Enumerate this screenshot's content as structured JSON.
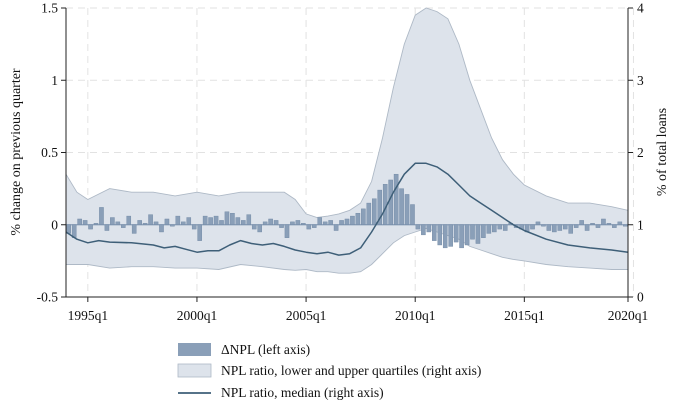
{
  "chart_data": {
    "type": "bar",
    "title": "",
    "ylabel_left": "% change on previous quarter",
    "ylabel_right": "% of total loans",
    "ylim_left": [
      -0.5,
      1.5
    ],
    "ylim_right": [
      0,
      4
    ],
    "yticks_left": [
      -0.5,
      0,
      0.5,
      1,
      1.5
    ],
    "yticks_left_labels": [
      "-0.5",
      "0",
      "0.5",
      "1",
      "1.5"
    ],
    "yticks_right": [
      0,
      1,
      2,
      3,
      4
    ],
    "yticks_right_labels": [
      "0",
      "1",
      "2",
      "3",
      "4"
    ],
    "x_start_year": 1994,
    "x_end_year": 2019.75,
    "xticks": [
      1995,
      2000,
      2005,
      2010,
      2015,
      2020
    ],
    "xtick_labels": [
      "1995q1",
      "2000q1",
      "2005q1",
      "2010q1",
      "2015q1",
      "2020q1"
    ],
    "grid": true,
    "legend_position": "bottom",
    "colors": {
      "bars": "#8a9fb8",
      "band": "#dde3eb",
      "band_edge": "#aeb9c6",
      "median": "#3e5f78",
      "grid": "#e2e2e2"
    },
    "series": [
      {
        "name": "ΔNPL (left axis)",
        "type": "bar",
        "axis": "left",
        "values": [
          -0.06,
          -0.09,
          0.04,
          0.03,
          -0.03,
          0.01,
          0.12,
          -0.04,
          0.05,
          0.02,
          -0.02,
          0.06,
          -0.06,
          0.03,
          0.01,
          0.07,
          0.02,
          -0.05,
          0.04,
          -0.01,
          0.06,
          0.02,
          0.05,
          -0.03,
          -0.11,
          0.06,
          0.05,
          0.06,
          0.03,
          0.09,
          0.08,
          0.05,
          0.03,
          0.07,
          -0.03,
          -0.05,
          0.02,
          0.04,
          0.03,
          -0.02,
          -0.09,
          0.02,
          0.03,
          0.01,
          -0.03,
          -0.02,
          0.05,
          0.02,
          0.03,
          -0.04,
          0.03,
          0.04,
          0.06,
          0.08,
          0.11,
          0.15,
          0.18,
          0.24,
          0.28,
          0.31,
          0.35,
          0.25,
          0.21,
          0.14,
          -0.03,
          -0.07,
          -0.05,
          -0.11,
          -0.14,
          -0.16,
          -0.15,
          -0.12,
          -0.16,
          -0.14,
          -0.1,
          -0.13,
          -0.09,
          -0.06,
          -0.05,
          -0.03,
          -0.04,
          0.01,
          -0.02,
          -0.03,
          -0.05,
          -0.03,
          0.02,
          -0.01,
          -0.04,
          -0.05,
          -0.04,
          -0.03,
          -0.06,
          -0.02,
          0.03,
          -0.04,
          0.01,
          -0.02,
          0.04,
          0.01,
          -0.02,
          0.02,
          -0.01
        ]
      },
      {
        "name": "NPL ratio, lower and upper quartiles (right axis)",
        "type": "area",
        "axis": "right",
        "x": [
          1994,
          1994.5,
          1995,
          1996,
          1997,
          1998,
          1999,
          2000,
          2001,
          2002,
          2003,
          2004,
          2004.5,
          2005,
          2005.5,
          2006,
          2006.5,
          2007,
          2007.5,
          2008,
          2008.5,
          2009,
          2009.5,
          2010,
          2010.5,
          2011,
          2011.5,
          2012,
          2012.5,
          2013,
          2013.5,
          2014,
          2014.5,
          2015,
          2016,
          2017,
          2018,
          2019,
          2019.75
        ],
        "upper": [
          1.7,
          1.45,
          1.35,
          1.5,
          1.45,
          1.45,
          1.4,
          1.45,
          1.4,
          1.45,
          1.45,
          1.45,
          1.35,
          1.15,
          1.1,
          1.12,
          1.15,
          1.2,
          1.3,
          1.6,
          2.2,
          2.9,
          3.5,
          3.9,
          4.0,
          3.95,
          3.85,
          3.5,
          3.0,
          2.6,
          2.2,
          1.9,
          1.7,
          1.55,
          1.4,
          1.3,
          1.3,
          1.25,
          1.2
        ],
        "lower": [
          0.45,
          0.45,
          0.45,
          0.4,
          0.42,
          0.42,
          0.4,
          0.4,
          0.38,
          0.45,
          0.42,
          0.38,
          0.37,
          0.38,
          0.35,
          0.35,
          0.33,
          0.33,
          0.35,
          0.45,
          0.6,
          0.75,
          0.85,
          0.9,
          0.95,
          0.9,
          0.85,
          0.8,
          0.7,
          0.65,
          0.6,
          0.55,
          0.52,
          0.5,
          0.45,
          0.42,
          0.4,
          0.38,
          0.38
        ]
      },
      {
        "name": "NPL ratio, median (right axis)",
        "type": "line",
        "axis": "right",
        "x": [
          1994,
          1994.5,
          1995,
          1995.5,
          1996,
          1997,
          1998,
          1998.5,
          1999,
          1999.5,
          2000,
          2000.5,
          2001,
          2001.5,
          2002,
          2002.5,
          2003,
          2003.5,
          2004,
          2004.5,
          2005,
          2005.5,
          2006,
          2006.5,
          2007,
          2007.5,
          2008,
          2008.5,
          2009,
          2009.5,
          2010,
          2010.5,
          2011,
          2011.5,
          2012,
          2012.5,
          2013,
          2013.5,
          2014,
          2014.5,
          2015,
          2016,
          2017,
          2018,
          2019,
          2019.75
        ],
        "values": [
          0.9,
          0.8,
          0.75,
          0.78,
          0.76,
          0.75,
          0.72,
          0.68,
          0.7,
          0.66,
          0.62,
          0.64,
          0.64,
          0.72,
          0.78,
          0.74,
          0.72,
          0.74,
          0.7,
          0.65,
          0.62,
          0.6,
          0.62,
          0.58,
          0.6,
          0.68,
          0.9,
          1.15,
          1.45,
          1.7,
          1.85,
          1.85,
          1.8,
          1.7,
          1.55,
          1.4,
          1.3,
          1.2,
          1.1,
          1.0,
          0.92,
          0.8,
          0.72,
          0.68,
          0.65,
          0.62
        ]
      }
    ]
  }
}
